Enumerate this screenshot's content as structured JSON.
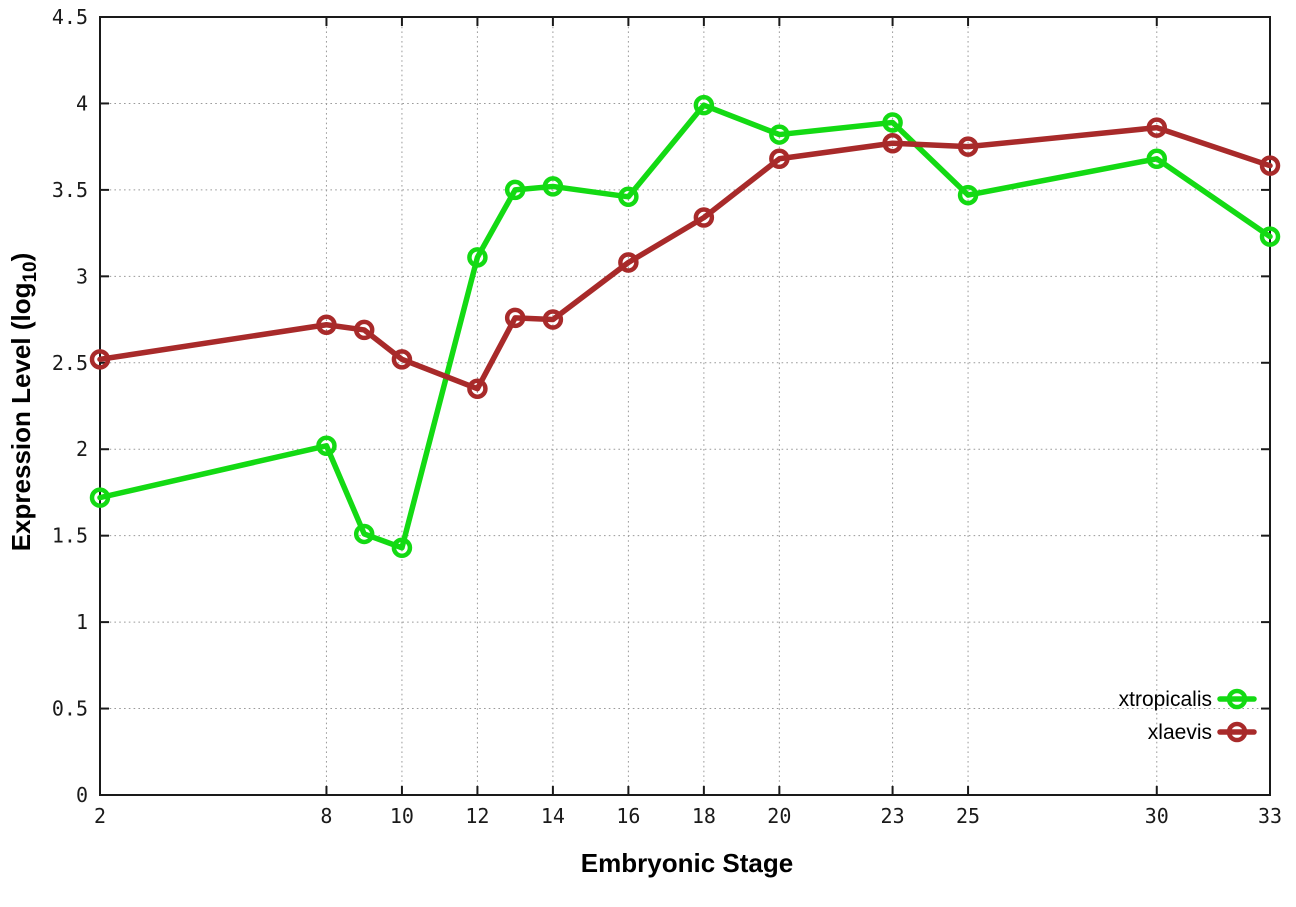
{
  "chart_data": {
    "type": "line",
    "title": "",
    "xlabel": "Embryonic Stage",
    "ylabel": "Expression Level (log10)",
    "ylabel_parts": {
      "main": "Expression Level (log",
      "sub": "10",
      "close": ")"
    },
    "x": [
      2,
      8,
      9,
      10,
      12,
      13,
      14,
      16,
      18,
      20,
      23,
      25,
      30,
      33
    ],
    "series": [
      {
        "name": "xtropicalis",
        "color": "#13da13",
        "values": [
          1.72,
          2.02,
          1.51,
          1.43,
          3.11,
          3.5,
          3.52,
          3.46,
          3.99,
          3.82,
          3.89,
          3.47,
          3.68,
          3.23
        ]
      },
      {
        "name": "xlaevis",
        "color": "#a82a2a",
        "values": [
          2.52,
          2.72,
          2.69,
          2.52,
          2.35,
          2.76,
          2.75,
          3.08,
          3.34,
          3.68,
          3.77,
          3.75,
          3.86,
          3.64
        ]
      }
    ],
    "xticks": [
      2,
      8,
      10,
      12,
      14,
      16,
      18,
      20,
      23,
      25,
      30,
      33
    ],
    "xtick_labels": [
      "2",
      "8",
      "10",
      "12",
      "14",
      "16",
      "18",
      "20",
      "23",
      "25",
      "30",
      "33"
    ],
    "yticks": [
      0,
      0.5,
      1,
      1.5,
      2,
      2.5,
      3,
      3.5,
      4,
      4.5
    ],
    "ytick_labels": [
      "0",
      "0.5",
      "1",
      "1.5",
      "2",
      "2.5",
      "3",
      "3.5",
      "4",
      "4.5"
    ],
    "xlim": [
      2,
      33
    ],
    "ylim": [
      0,
      4.5
    ],
    "grid": true,
    "grid_color": "#9a9a9a",
    "border_color": "#1a1a1a",
    "legend_position": "bottom-right",
    "legend_entries": [
      "xtropicalis",
      "xlaevis"
    ],
    "marker": "open-circle"
  }
}
